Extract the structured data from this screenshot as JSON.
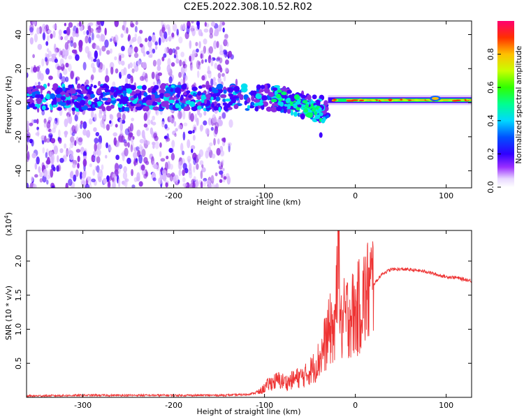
{
  "title": "C2E5.2022.308.10.52.R02",
  "colorbar": {
    "label": "Normalized spectral amplitude",
    "ticks": [
      "0.0",
      "0.2",
      "0.4",
      "0.6",
      "0.8"
    ]
  },
  "chart_data": [
    {
      "type": "heatmap",
      "xlabel": "Height of straight line (km)",
      "ylabel": "Frequency (Hz)",
      "xlim": [
        -362,
        128
      ],
      "ylim": [
        -50,
        48
      ],
      "xticks": [
        "-300",
        "-200",
        "-100",
        "0",
        "100"
      ],
      "yticks": [
        "-40",
        "-20",
        "0",
        "20",
        "40"
      ],
      "colormap": [
        "#f8f0ff",
        "#d9b8ff",
        "#8a2be2",
        "#4000ff",
        "#0060ff",
        "#00e0f0",
        "#00ff66",
        "#c8ff00",
        "#ffc000",
        "#ff3000",
        "#ff0060"
      ],
      "features": {
        "sparse_noise_region_km": [
          -362,
          -140
        ],
        "main_band_center_hz": 3,
        "descending_track_km": [
          -90,
          -30
        ],
        "descending_track_min_hz": -18,
        "strong_line_km": [
          -30,
          128
        ],
        "strong_line_hz": 1.5
      }
    },
    {
      "type": "line",
      "xlabel": "Height of straight line (km)",
      "ylabel": "SNR (10 * v/v)",
      "yscale_label": "(x10",
      "yscale_exp": "4",
      "xlim": [
        -362,
        128
      ],
      "ylim": [
        0,
        2.45
      ],
      "xticks": [
        "-300",
        "-200",
        "-100",
        "0",
        "100"
      ],
      "yticks": [
        "0.5",
        "1.0",
        "1.5",
        "2.0"
      ],
      "series": [
        {
          "color": "#ee3333",
          "x": [
            -362,
            -300,
            -250,
            -200,
            -150,
            -120,
            -105,
            -95,
            -85,
            -75,
            -65,
            -55,
            -45,
            -38,
            -32,
            -26,
            -22,
            -19,
            -16,
            -12,
            -6,
            0,
            6,
            12,
            18,
            24,
            30,
            40,
            55,
            70,
            80,
            90,
            100,
            110,
            120,
            128
          ],
          "y": [
            0.02,
            0.03,
            0.03,
            0.03,
            0.03,
            0.04,
            0.08,
            0.2,
            0.25,
            0.22,
            0.28,
            0.32,
            0.45,
            0.6,
            0.85,
            1.05,
            0.9,
            2.45,
            1.0,
            1.15,
            1.25,
            1.2,
            1.4,
            1.5,
            1.62,
            1.72,
            1.82,
            1.88,
            1.88,
            1.86,
            1.84,
            1.8,
            1.77,
            1.76,
            1.73,
            1.71
          ]
        }
      ]
    }
  ]
}
